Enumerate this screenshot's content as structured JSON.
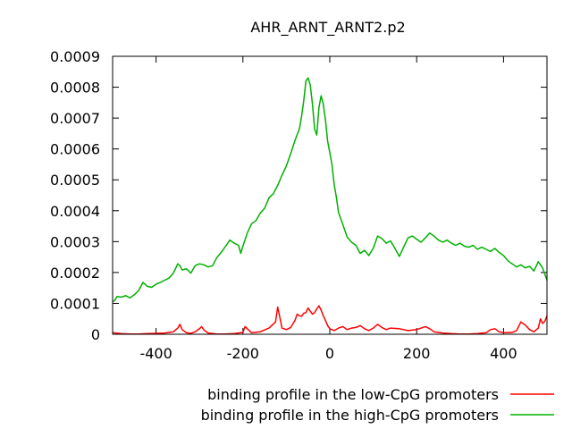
{
  "chart_data": {
    "type": "line",
    "title": "AHR_ARNT_ARNT2.p2",
    "xlabel": "",
    "ylabel": "",
    "xlim": [
      -500,
      500
    ],
    "ylim": [
      0,
      0.0009
    ],
    "xticks": [
      -400,
      -200,
      0,
      200,
      400
    ],
    "xtick_labels": [
      "-400",
      "-200",
      "0",
      "200",
      "400"
    ],
    "yticks": [
      0,
      0.0001,
      0.0002,
      0.0003,
      0.0004,
      0.0005,
      0.0006,
      0.0007,
      0.0008,
      0.0009
    ],
    "ytick_labels": [
      "0",
      "0.0001",
      "0.0002",
      "0.0003",
      "0.0004",
      "0.0005",
      "0.0006",
      "0.0007",
      "0.0008",
      "0.0009"
    ],
    "grid": false,
    "legend_position": "bottom-right, below plot",
    "series": [
      {
        "name": "binding profile in the low-CpG promoters",
        "color": "#ff0000",
        "x": [
          -500,
          -480,
          -460,
          -440,
          -420,
          -400,
          -380,
          -360,
          -350,
          -345,
          -340,
          -330,
          -320,
          -310,
          -300,
          -295,
          -290,
          -280,
          -260,
          -240,
          -220,
          -200,
          -195,
          -190,
          -180,
          -160,
          -140,
          -125,
          -120,
          -115,
          -110,
          -100,
          -90,
          -80,
          -75,
          -70,
          -65,
          -60,
          -55,
          -50,
          -45,
          -40,
          -35,
          -30,
          -25,
          -20,
          -15,
          -10,
          -5,
          0,
          10,
          20,
          30,
          40,
          50,
          60,
          70,
          80,
          90,
          100,
          110,
          120,
          130,
          140,
          160,
          180,
          200,
          220,
          230,
          240,
          260,
          280,
          300,
          320,
          340,
          360,
          370,
          380,
          390,
          400,
          420,
          430,
          440,
          450,
          460,
          470,
          480,
          485,
          490,
          495,
          500
        ],
        "y": [
          5e-06,
          2e-06,
          1e-06,
          1e-06,
          2e-06,
          3e-06,
          4e-06,
          8e-06,
          2e-05,
          3.2e-05,
          1.5e-05,
          5e-06,
          3e-06,
          8e-06,
          1.8e-05,
          2.5e-05,
          1.4e-05,
          4e-06,
          1e-06,
          1e-06,
          2e-06,
          6e-06,
          2.5e-05,
          1.8e-05,
          5e-06,
          8e-06,
          2e-05,
          4e-05,
          8.8e-05,
          5.5e-05,
          2e-05,
          1.5e-05,
          2.2e-05,
          4.5e-05,
          6.5e-05,
          6e-05,
          5.8e-05,
          6.8e-05,
          7e-05,
          8.5e-05,
          7.5e-05,
          6.5e-05,
          7e-05,
          8.2e-05,
          9.2e-05,
          7.8e-05,
          6e-05,
          4.5e-05,
          2.8e-05,
          1.8e-05,
          1.2e-05,
          2e-05,
          2.5e-05,
          1.5e-05,
          2e-05,
          2.2e-05,
          2.8e-05,
          1.8e-05,
          1.2e-05,
          2e-05,
          3.2e-05,
          2.2e-05,
          1.5e-05,
          2e-05,
          1.8e-05,
          1.2e-05,
          1.5e-05,
          2.5e-05,
          1.8e-05,
          8e-06,
          4e-06,
          2e-06,
          1e-06,
          1e-06,
          2e-06,
          5e-06,
          1.5e-05,
          1.8e-05,
          8e-06,
          5e-06,
          6e-06,
          1.2e-05,
          4e-05,
          3e-05,
          1.5e-05,
          8e-06,
          2e-05,
          5e-05,
          3.5e-05,
          4.2e-05,
          6e-05
        ]
      },
      {
        "name": "binding profile in the high-CpG promoters",
        "color": "#00b000",
        "x": [
          -500,
          -495,
          -490,
          -480,
          -470,
          -460,
          -450,
          -440,
          -430,
          -420,
          -410,
          -400,
          -390,
          -380,
          -370,
          -360,
          -350,
          -345,
          -340,
          -330,
          -320,
          -310,
          -300,
          -290,
          -280,
          -270,
          -260,
          -250,
          -240,
          -230,
          -220,
          -210,
          -205,
          -200,
          -190,
          -180,
          -170,
          -160,
          -150,
          -140,
          -130,
          -120,
          -110,
          -100,
          -90,
          -80,
          -70,
          -65,
          -60,
          -55,
          -50,
          -45,
          -40,
          -35,
          -30,
          -25,
          -20,
          -15,
          -10,
          -5,
          0,
          5,
          10,
          15,
          20,
          30,
          40,
          50,
          60,
          70,
          80,
          90,
          100,
          110,
          120,
          130,
          140,
          150,
          160,
          170,
          180,
          190,
          200,
          210,
          220,
          230,
          240,
          250,
          260,
          270,
          280,
          290,
          300,
          310,
          320,
          330,
          340,
          350,
          360,
          370,
          380,
          390,
          400,
          410,
          420,
          430,
          440,
          450,
          460,
          470,
          480,
          490,
          500
        ],
        "y": [
          0.000105,
          0.00011,
          0.000122,
          0.00012,
          0.000125,
          0.000118,
          0.000128,
          0.000142,
          0.000168,
          0.000155,
          0.000152,
          0.000162,
          0.000168,
          0.000175,
          0.000182,
          0.000198,
          0.000228,
          0.000222,
          0.000208,
          0.000212,
          0.000198,
          0.000222,
          0.000228,
          0.000225,
          0.000218,
          0.000222,
          0.000248,
          0.000265,
          0.000285,
          0.000305,
          0.000295,
          0.000288,
          0.000262,
          0.000285,
          0.000328,
          0.000358,
          0.000368,
          0.000392,
          0.000408,
          0.000442,
          0.000455,
          0.000482,
          0.000515,
          0.000545,
          0.000585,
          0.000628,
          0.000665,
          0.000705,
          0.000755,
          0.00082,
          0.00083,
          0.000808,
          0.000745,
          0.000665,
          0.000645,
          0.000735,
          0.000772,
          0.000745,
          0.000695,
          0.000625,
          0.000588,
          0.00055,
          0.000485,
          0.000445,
          0.000395,
          0.000355,
          0.000315,
          0.000298,
          0.000288,
          0.000262,
          0.000272,
          0.000255,
          0.000278,
          0.000318,
          0.00031,
          0.000295,
          0.000302,
          0.000278,
          0.000252,
          0.000282,
          0.000312,
          0.000318,
          0.000308,
          0.000298,
          0.000312,
          0.000328,
          0.000318,
          0.000305,
          0.000298,
          0.000305,
          0.000295,
          0.000288,
          0.000295,
          0.000285,
          0.000282,
          0.000288,
          0.000275,
          0.000282,
          0.000275,
          0.000268,
          0.000278,
          0.000265,
          0.000255,
          0.000238,
          0.000228,
          0.000218,
          0.000225,
          0.000215,
          0.00022,
          0.000205,
          0.000235,
          0.000215,
          0.000175
        ]
      }
    ]
  }
}
